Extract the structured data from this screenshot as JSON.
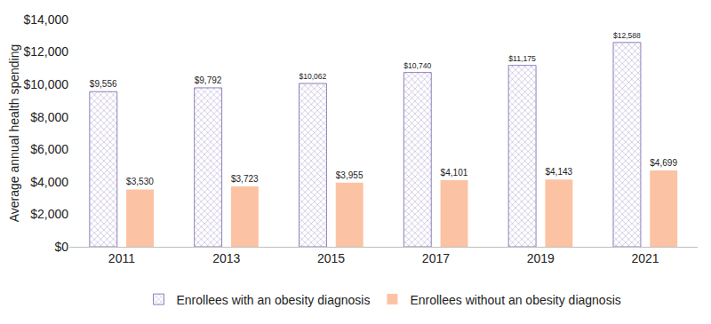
{
  "chart_data": {
    "type": "bar",
    "y_label": "Average annual health spending",
    "categories": [
      "2011",
      "2013",
      "2015",
      "2017",
      "2019",
      "2021"
    ],
    "series": [
      {
        "name": "Enrollees with an obesity diagnosis",
        "color": "#a99bcf",
        "values": [
          9556,
          9792,
          10062,
          10740,
          11175,
          12588
        ],
        "value_labels": [
          "$9,556",
          "$9,792",
          "$10,062",
          "$10,740",
          "$11,175",
          "$12,588"
        ]
      },
      {
        "name": "Enrollees without an obesity diagnosis",
        "color": "#fbc3a3",
        "values": [
          3530,
          3723,
          3955,
          4101,
          4143,
          4699
        ],
        "value_labels": [
          "$3,530",
          "$3,723",
          "$3,955",
          "$4,101",
          "$4,143",
          "$4,699"
        ]
      }
    ],
    "ylim": [
      0,
      14000
    ],
    "yticks": [
      {
        "value": 0,
        "label": "$0"
      },
      {
        "value": 2000,
        "label": "$2,000"
      },
      {
        "value": 4000,
        "label": "$4,000"
      },
      {
        "value": 6000,
        "label": "$6,000"
      },
      {
        "value": 8000,
        "label": "$8,000"
      },
      {
        "value": 10000,
        "label": "$10,000"
      },
      {
        "value": 12000,
        "label": "$12,000"
      },
      {
        "value": 14000,
        "label": "$14,000"
      }
    ],
    "grid": false,
    "legend": "bottom",
    "data_labels": true
  }
}
